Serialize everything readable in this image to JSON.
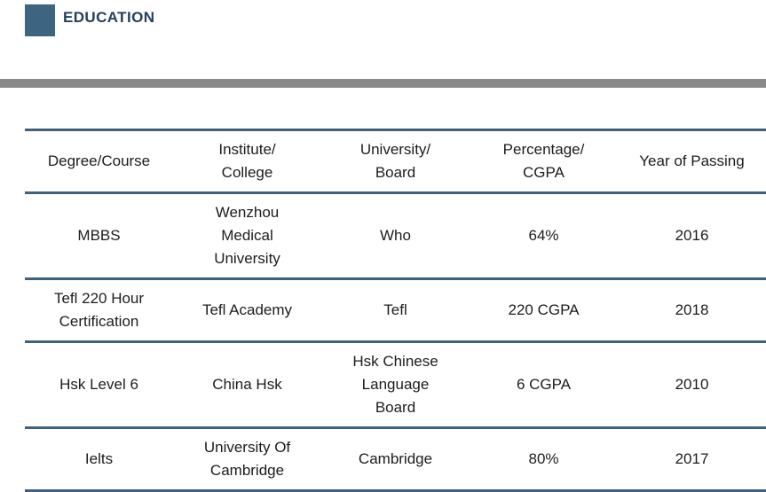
{
  "section": {
    "title": "EDUCATION"
  },
  "colors": {
    "accent_square": "#3d6480",
    "table_border": "#3e627e",
    "divider_bar": "#898989",
    "title_text": "#22405c"
  },
  "table": {
    "columns": [
      "Institute/\nCollege",
      "University/\nBoard",
      "Percentage/\nCGPA",
      "Year of Passing"
    ],
    "first_column": "Degree/Course",
    "rows": [
      {
        "degree": "MBBS",
        "institute": "Wenzhou\nMedical\nUniversity",
        "university": "Who",
        "percentage": "64%",
        "year": "2016"
      },
      {
        "degree": "Tefl 220 Hour\nCertification",
        "institute": "Tefl Academy",
        "university": "Tefl",
        "percentage": "220 CGPA",
        "year": "2018"
      },
      {
        "degree": "Hsk Level 6",
        "institute": "China Hsk",
        "university": "Hsk Chinese\nLanguage\nBoard",
        "percentage": "6 CGPA",
        "year": "2010"
      },
      {
        "degree": "Ielts",
        "institute": "University Of\nCambridge",
        "university": "Cambridge",
        "percentage": "80%",
        "year": "2017"
      }
    ]
  }
}
